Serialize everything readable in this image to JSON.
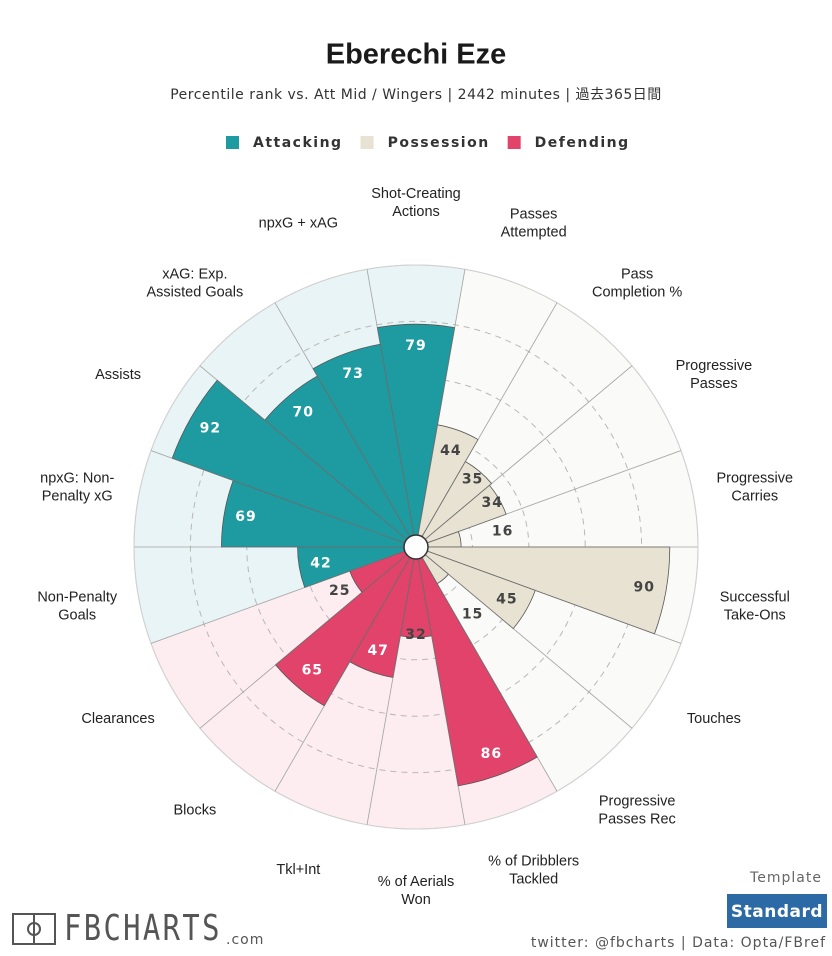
{
  "chart_data": {
    "type": "pizza",
    "title": "Eberechi Eze",
    "subtitle": "Percentile rank vs. Att Mid / Wingers | 2442 minutes | 過去365日間",
    "categories": [
      "Shot-Creating\nActions",
      "Passes\nAttempted",
      "Pass\nCompletion %",
      "Progressive\nPasses",
      "Progressive\nCarries",
      "Successful\nTake-Ons",
      "Touches",
      "Progressive\nPasses Rec",
      "% of Dribblers\nTackled",
      "% of Aerials\nWon",
      "Tkl+Int",
      "Blocks",
      "Clearances",
      "Non-Penalty\nGoals",
      "npxG: Non-\nPenalty xG",
      "Assists",
      "xAG: Exp.\nAssisted Goals",
      "npxG + xAG"
    ],
    "series": [
      {
        "name": "Attacking",
        "color": "#1e9ba1",
        "background": "#e8f4f5",
        "values": [
          79,
          null,
          null,
          null,
          null,
          null,
          null,
          null,
          null,
          null,
          null,
          null,
          null,
          42,
          69,
          92,
          70,
          73
        ]
      },
      {
        "name": "Possession",
        "color": "#e8e2d2",
        "background": "#fafaf8",
        "values": [
          null,
          44,
          35,
          34,
          16,
          90,
          45,
          15,
          null,
          null,
          null,
          null,
          null,
          null,
          null,
          null,
          null,
          null
        ]
      },
      {
        "name": "Defending",
        "color": "#e2436a",
        "background": "#fdecf0",
        "values": [
          null,
          null,
          null,
          null,
          null,
          null,
          null,
          null,
          86,
          32,
          47,
          65,
          25,
          null,
          null,
          null,
          null,
          null
        ]
      }
    ],
    "rlim": [
      0,
      100
    ],
    "rticks": [
      20,
      40,
      60,
      80,
      100
    ],
    "grid": true
  },
  "template": {
    "label": "Template",
    "button": "Standard"
  },
  "footer": {
    "credit": "twitter: @fbcharts | Data: Opta/FBref",
    "logo": "FBCHARTS",
    "logo_suffix": ".com"
  }
}
